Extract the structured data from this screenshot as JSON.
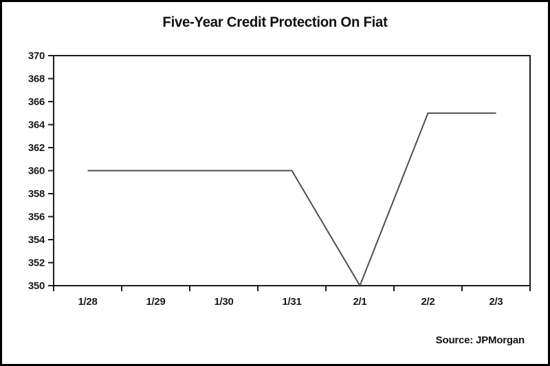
{
  "window": {
    "background": "#ffffff",
    "frame_color": "#000000"
  },
  "chart_data": {
    "type": "line",
    "title": "Five-Year Credit Protection On Fiat",
    "categories": [
      "1/28",
      "1/29",
      "1/30",
      "1/31",
      "2/1",
      "2/2",
      "2/3"
    ],
    "values": [
      360,
      360,
      360,
      360,
      350,
      365,
      365
    ],
    "xlabel": "",
    "ylabel": "",
    "ylim": [
      350,
      370
    ],
    "ytick_step": 2,
    "ytick_labels": [
      "350",
      "352",
      "354",
      "356",
      "358",
      "360",
      "362",
      "364",
      "366",
      "368",
      "370"
    ],
    "grid": false,
    "legend_position": "none",
    "line_color": "#4d4d4d",
    "axis_color": "#1a1a1a",
    "text_color": "#1a1a1a"
  },
  "footer": {
    "source": "Source: JPMorgan"
  }
}
